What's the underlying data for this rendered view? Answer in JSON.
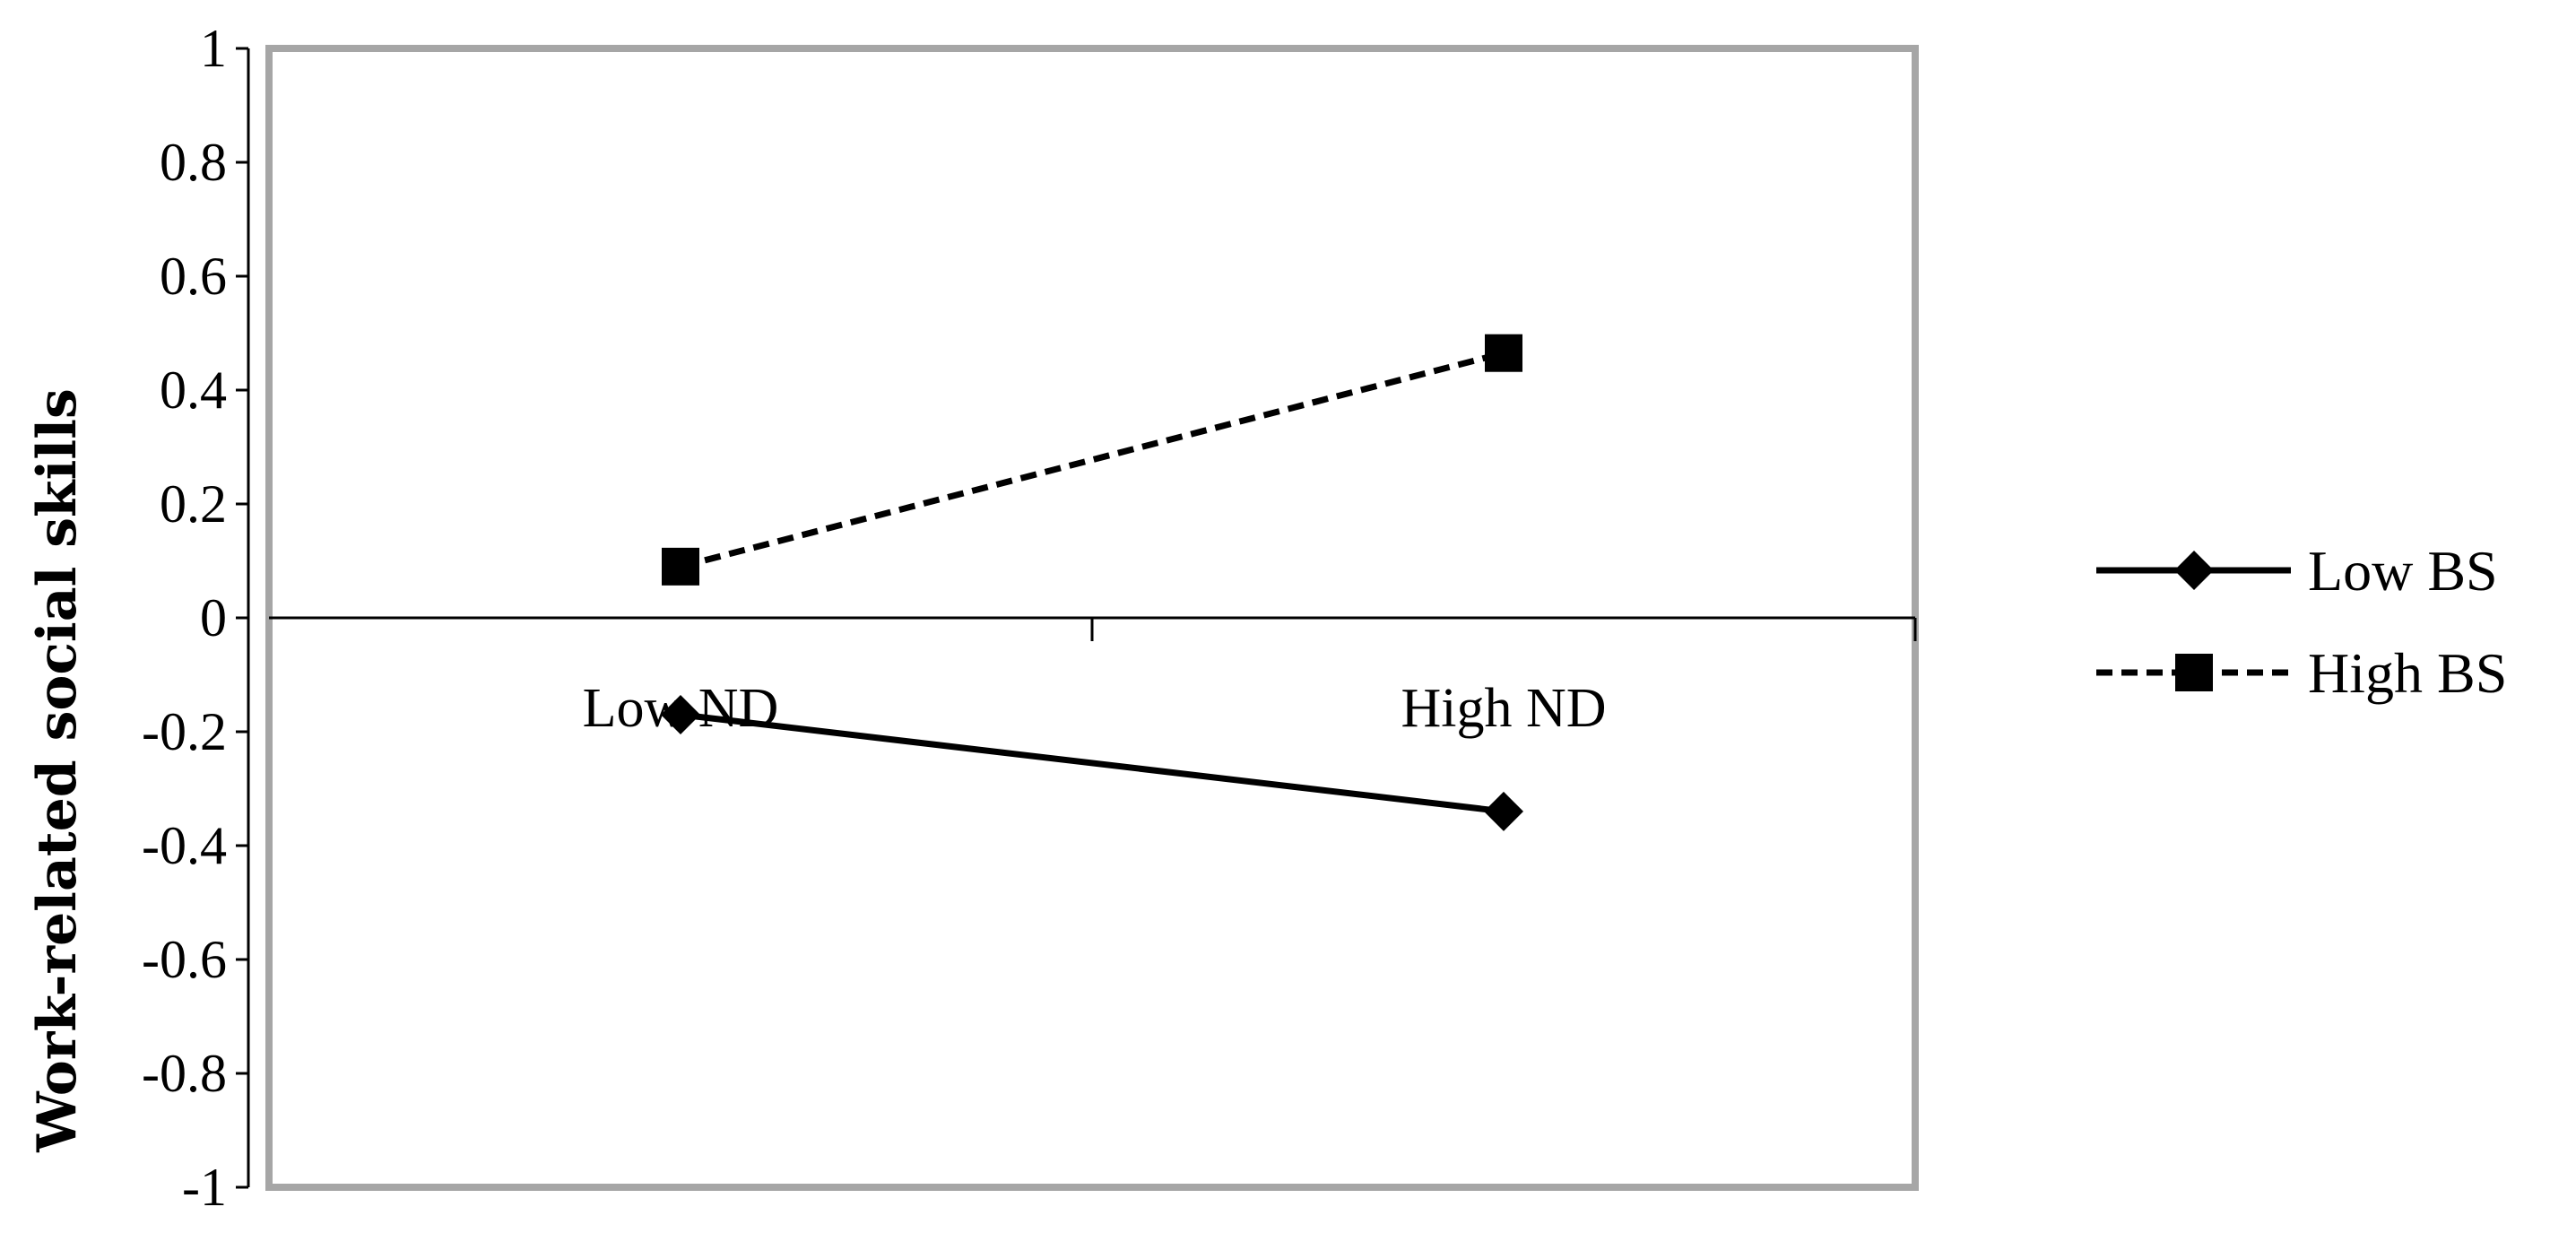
{
  "chart_data": {
    "type": "line",
    "categories": [
      "Low ND",
      "High ND"
    ],
    "ylabel": "Work-related social skills",
    "ylim": [
      -1,
      1
    ],
    "yticks": [
      "1",
      "0.8",
      "0.6",
      "0.4",
      "0.2",
      "0",
      "-0.2",
      "-0.4",
      "-0.6",
      "-0.8",
      "-1"
    ],
    "grid": false,
    "legend_position": "right",
    "series": [
      {
        "name": "Low BS",
        "values": [
          -0.17,
          -0.34
        ],
        "marker": "diamond",
        "line_style": "solid",
        "color": "#000000"
      },
      {
        "name": "High BS",
        "values": [
          0.09,
          0.465
        ],
        "marker": "square",
        "line_style": "dashed",
        "color": "#000000"
      }
    ],
    "plot_border_color": "#a6a6a6"
  }
}
